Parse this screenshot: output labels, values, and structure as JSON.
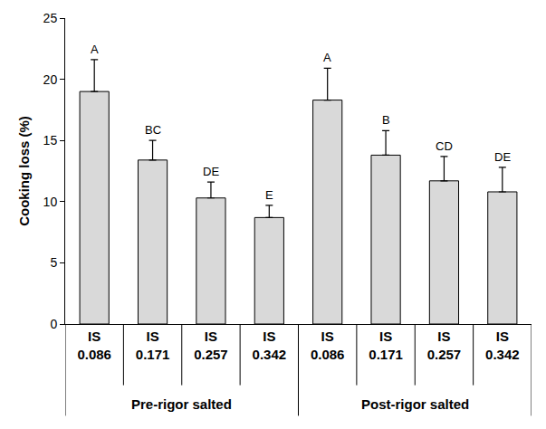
{
  "chart_data": {
    "type": "bar",
    "y_label": "Cooking loss (%)",
    "categories": [
      "IS 0.086",
      "IS 0.171",
      "IS 0.257",
      "IS 0.342",
      "IS 0.086",
      "IS 0.171",
      "IS 0.257",
      "IS 0.342"
    ],
    "group": [
      "Pre-rigor salted",
      "Pre-rigor salted",
      "Pre-rigor salted",
      "Pre-rigor salted",
      "Post-rigor salted",
      "Post-rigor salted",
      "Post-rigor salted",
      "Post-rigor salted"
    ],
    "values": [
      19.0,
      13.4,
      10.3,
      8.7,
      18.3,
      13.8,
      11.7,
      10.8
    ],
    "errors": [
      2.6,
      1.6,
      1.3,
      1.0,
      2.6,
      2.0,
      2.0,
      2.0
    ],
    "annotations": [
      "A",
      "BC",
      "DE",
      "E",
      "A",
      "B",
      "CD",
      "DE"
    ],
    "color": "#d9d9d9",
    "ylim": [
      0,
      25
    ],
    "yticks": [
      0,
      5,
      10,
      15,
      20,
      25
    ],
    "grid": false
  }
}
